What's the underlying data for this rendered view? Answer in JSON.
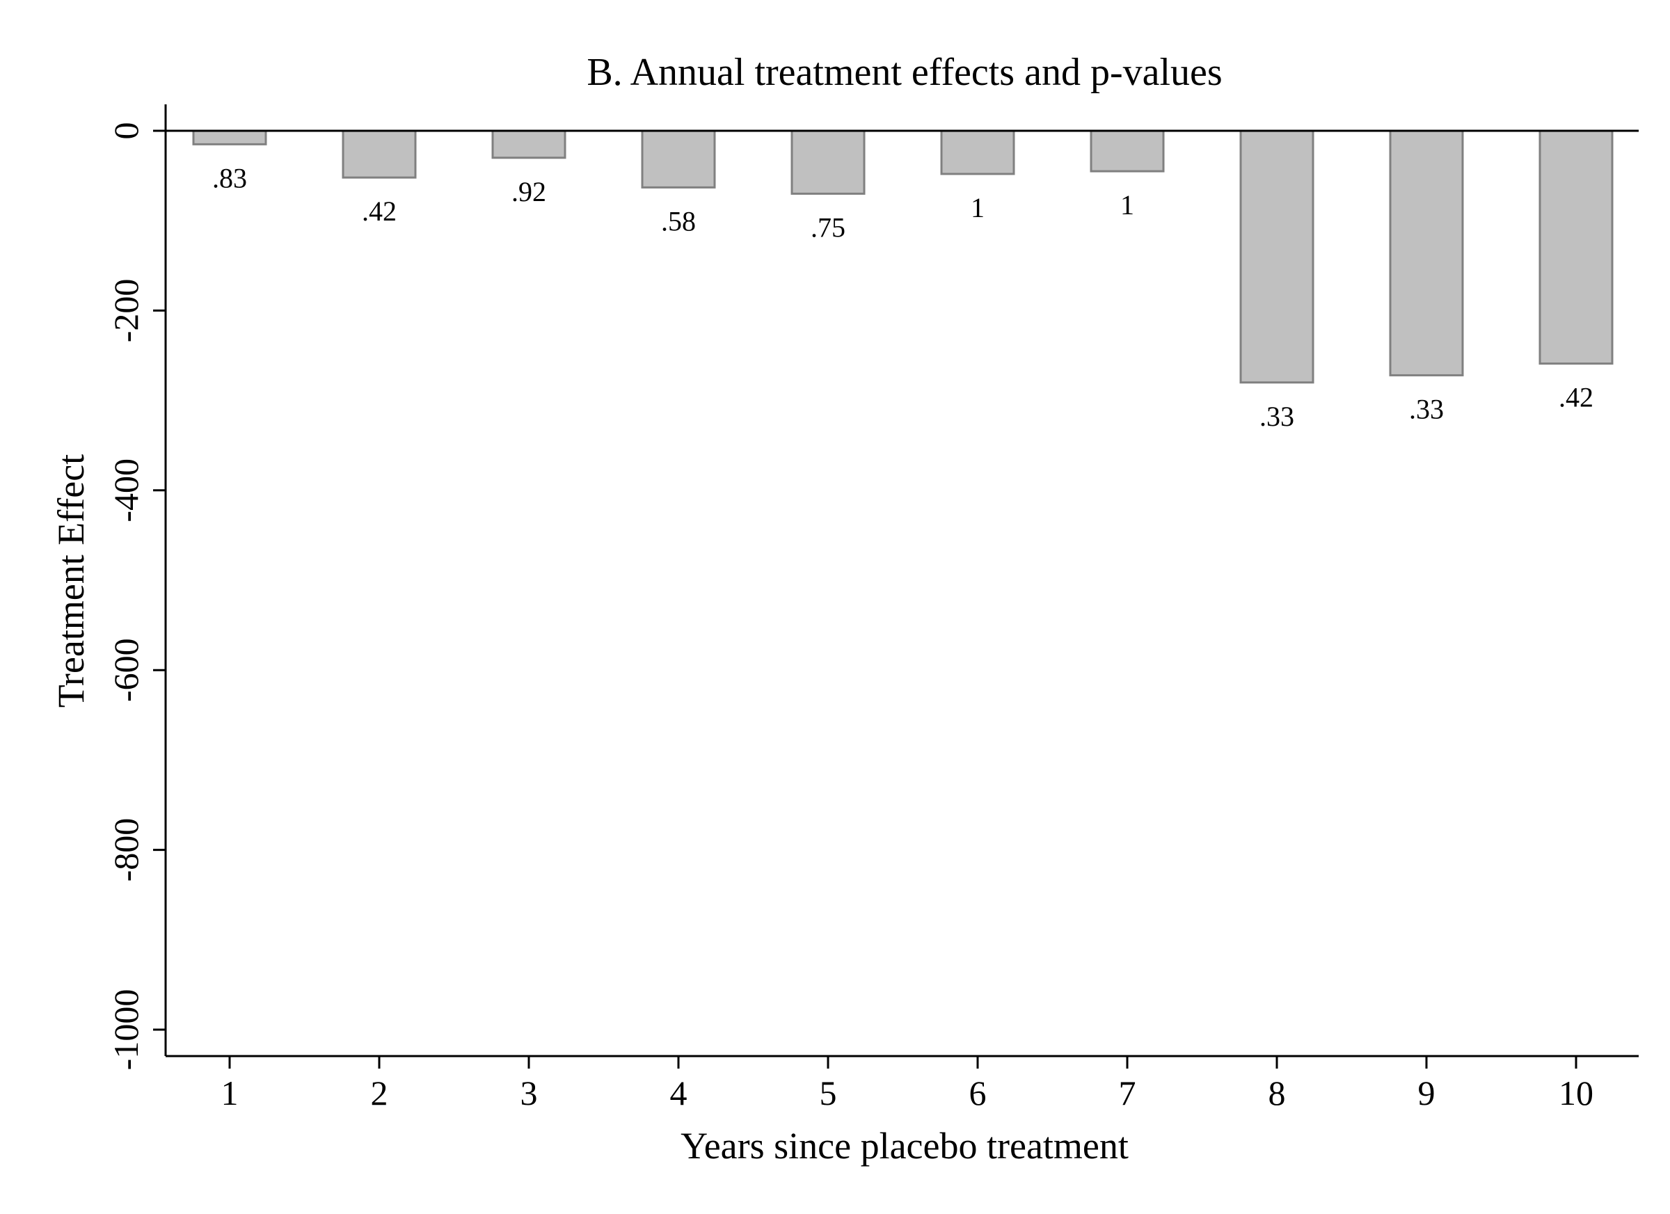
{
  "chart_data": {
    "type": "bar",
    "title": "B. Annual treatment effects and p-values",
    "xlabel": "Years since placebo treatment",
    "ylabel": "Treatment Effect",
    "categories": [
      "1",
      "2",
      "3",
      "4",
      "5",
      "6",
      "7",
      "8",
      "9",
      "10"
    ],
    "values": [
      -15,
      -52,
      -30,
      -63,
      -70,
      -48,
      -45,
      -280,
      -272,
      -259
    ],
    "data_labels": [
      ".83",
      ".42",
      ".92",
      ".58",
      ".75",
      "1",
      "1",
      ".33",
      ".33",
      ".42"
    ],
    "yticks": [
      0,
      -200,
      -400,
      -600,
      -800,
      -1000
    ],
    "ytick_labels": [
      "0",
      "-200",
      "-400",
      "-600",
      "-800",
      "-1000"
    ],
    "ylim": [
      -1000,
      30
    ],
    "reference_line": 0,
    "grid": false,
    "bar_fill": "#c0c0c0",
    "bar_edge": "#808080"
  }
}
